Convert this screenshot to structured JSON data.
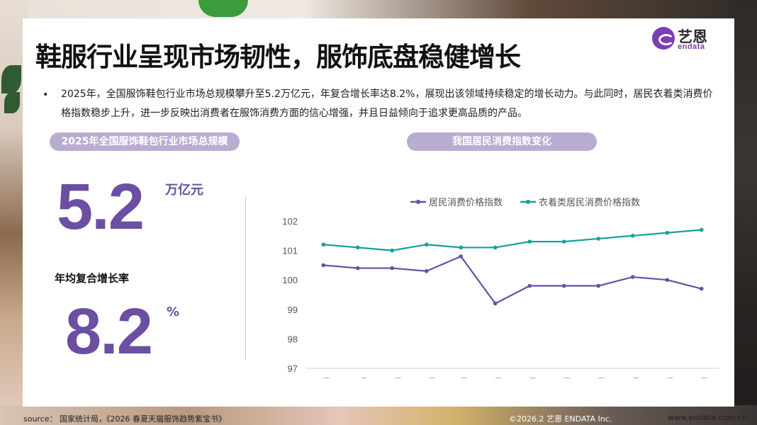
{
  "slide": {
    "title": "鞋服行业呈现市场韧性，服饰底盘稳健增长",
    "bullet": "2025年，全国服饰鞋包行业市场总规模攀升至5.2万亿元，年复合增长率达8.2%，展现出该领域持续稳定的增长动力。与此同时，居民衣着类消费价格指数稳步上升，进一步反映出消费者在服饰消费方面的信心增强，并且日益倾向于追求更高品质的产品。",
    "bullet_symbol": "•"
  },
  "logo": {
    "cn": "艺恩",
    "en": "endata"
  },
  "left_panel": {
    "pill_label": "2025年全国服饰鞋包行业市场总规模",
    "market_size_value": "5.2",
    "market_size_unit": "万亿元",
    "cagr_label": "年均复合增长率",
    "cagr_value": "8.2",
    "cagr_unit": "%"
  },
  "right_panel": {
    "pill_label": "我国居民消费指数变化"
  },
  "chart_data": {
    "type": "line",
    "title": "",
    "xlabel": "",
    "ylabel": "",
    "categories": [
      "9月",
      "10月",
      "11月",
      "12月",
      "1月",
      "2月",
      "3月",
      "4月",
      "5月",
      "6月",
      "7月",
      "8月"
    ],
    "ylim": [
      97,
      102
    ],
    "yticks": [
      97,
      98,
      99,
      100,
      101,
      102
    ],
    "grid": false,
    "legend_position": "top-center",
    "series": [
      {
        "name": "居民消费价格指数",
        "color": "#6a4fa2",
        "values": [
          100.5,
          100.4,
          100.4,
          100.3,
          100.8,
          99.2,
          99.8,
          99.8,
          99.8,
          100.1,
          100.0,
          99.7
        ]
      },
      {
        "name": "衣着类居民消费价格指数",
        "color": "#12a19a",
        "values": [
          101.2,
          101.1,
          101.0,
          101.2,
          101.1,
          101.1,
          101.3,
          101.3,
          101.4,
          101.5,
          101.6,
          101.7
        ]
      }
    ]
  },
  "footer": {
    "source": "source： 国家统计局，《2026 春夏天猫服饰趋势紫宝书》",
    "copyright": "©2026.2  艺恩 ENDATA Inc.",
    "url": "www.endata.com.cn"
  },
  "colors": {
    "accent": "#6a4fa2",
    "pill": "#b9acd1",
    "teal": "#12a19a"
  }
}
